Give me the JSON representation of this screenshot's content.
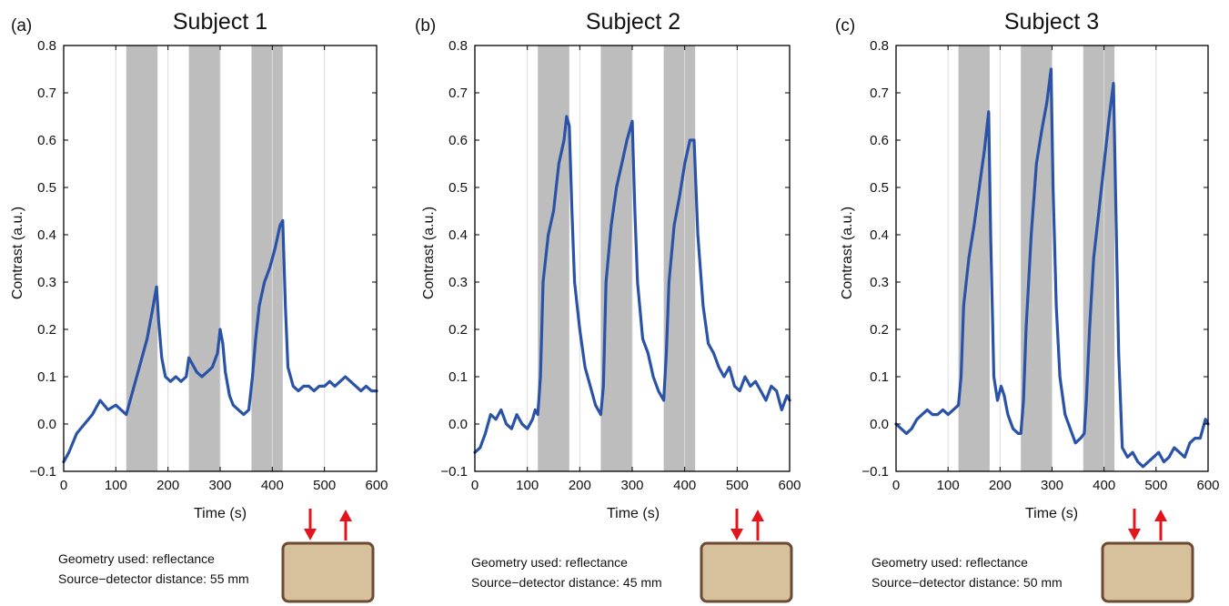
{
  "colors": {
    "line": "#2a52a6",
    "band": "#bdbdbd",
    "box_fill": "#d6c19c",
    "box_stroke": "#6e4a33",
    "arrow": "#e3141b",
    "grid": "#dcdcdc"
  },
  "chart_data": [
    {
      "type": "line",
      "panel_label": "(a)",
      "title": "Subject 1",
      "xlabel": "Time (s)",
      "ylabel": "Contrast (a.u.)",
      "xlim": [
        0,
        600
      ],
      "ylim": [
        -0.1,
        0.8
      ],
      "xticks": [
        "0",
        "100",
        "200",
        "300",
        "400",
        "500",
        "600"
      ],
      "yticks": [
        "−0.1",
        "0.0",
        "0.1",
        "0.2",
        "0.3",
        "0.4",
        "0.5",
        "0.6",
        "0.7",
        "0.8"
      ],
      "shaded_intervals": [
        [
          120,
          180
        ],
        [
          240,
          300
        ],
        [
          360,
          420
        ]
      ],
      "grid": "vertical",
      "series": [
        {
          "x": [
            0,
            10,
            25,
            40,
            55,
            70,
            85,
            100,
            110,
            120,
            130,
            140,
            150,
            160,
            170,
            178,
            182,
            188,
            195,
            205,
            215,
            225,
            235,
            240,
            245,
            255,
            265,
            275,
            285,
            295,
            300,
            305,
            310,
            318,
            325,
            335,
            345,
            355,
            362,
            368,
            375,
            385,
            395,
            405,
            415,
            420,
            425,
            430,
            440,
            450,
            460,
            470,
            480,
            490,
            500,
            510,
            520,
            530,
            540,
            550,
            560,
            570,
            580,
            590,
            600
          ],
          "y": [
            -0.08,
            -0.06,
            -0.02,
            0.0,
            0.02,
            0.05,
            0.03,
            0.04,
            0.03,
            0.02,
            0.06,
            0.1,
            0.14,
            0.18,
            0.24,
            0.29,
            0.22,
            0.14,
            0.1,
            0.09,
            0.1,
            0.09,
            0.1,
            0.14,
            0.13,
            0.11,
            0.1,
            0.11,
            0.12,
            0.15,
            0.2,
            0.17,
            0.11,
            0.06,
            0.04,
            0.03,
            0.02,
            0.03,
            0.1,
            0.18,
            0.25,
            0.3,
            0.33,
            0.37,
            0.42,
            0.43,
            0.25,
            0.12,
            0.08,
            0.07,
            0.08,
            0.08,
            0.07,
            0.08,
            0.08,
            0.09,
            0.08,
            0.09,
            0.1,
            0.09,
            0.08,
            0.07,
            0.08,
            0.07,
            0.07
          ]
        }
      ],
      "note": [
        "Geometry used: reflectance",
        "Source−detector distance: 55 mm"
      ]
    },
    {
      "type": "line",
      "panel_label": "(b)",
      "title": "Subject 2",
      "xlabel": "Time (s)",
      "ylabel": "Contrast (a.u.)",
      "xlim": [
        0,
        600
      ],
      "ylim": [
        -0.1,
        0.8
      ],
      "xticks": [
        "0",
        "100",
        "200",
        "300",
        "400",
        "500",
        "600"
      ],
      "yticks": [
        "−0.1",
        "0.0",
        "0.1",
        "0.2",
        "0.3",
        "0.4",
        "0.5",
        "0.6",
        "0.7",
        "0.8"
      ],
      "shaded_intervals": [
        [
          120,
          180
        ],
        [
          240,
          300
        ],
        [
          360,
          420
        ]
      ],
      "grid": "vertical",
      "series": [
        {
          "x": [
            0,
            10,
            20,
            30,
            40,
            50,
            60,
            70,
            80,
            90,
            100,
            110,
            115,
            120,
            125,
            130,
            140,
            150,
            160,
            170,
            175,
            180,
            185,
            190,
            200,
            210,
            220,
            230,
            240,
            245,
            250,
            260,
            270,
            280,
            290,
            300,
            305,
            310,
            320,
            330,
            340,
            350,
            360,
            365,
            370,
            380,
            390,
            400,
            410,
            418,
            425,
            435,
            445,
            455,
            465,
            475,
            485,
            495,
            505,
            515,
            525,
            535,
            545,
            555,
            565,
            575,
            585,
            595,
            600
          ],
          "y": [
            -0.06,
            -0.05,
            -0.02,
            0.02,
            0.01,
            0.03,
            0.0,
            -0.01,
            0.02,
            0.0,
            -0.01,
            0.01,
            0.03,
            0.02,
            0.1,
            0.3,
            0.4,
            0.45,
            0.55,
            0.6,
            0.65,
            0.63,
            0.45,
            0.3,
            0.2,
            0.12,
            0.08,
            0.04,
            0.02,
            0.08,
            0.3,
            0.42,
            0.5,
            0.55,
            0.6,
            0.64,
            0.45,
            0.3,
            0.18,
            0.15,
            0.1,
            0.07,
            0.05,
            0.15,
            0.3,
            0.42,
            0.48,
            0.55,
            0.6,
            0.6,
            0.4,
            0.25,
            0.17,
            0.15,
            0.12,
            0.1,
            0.12,
            0.08,
            0.07,
            0.1,
            0.08,
            0.09,
            0.07,
            0.05,
            0.08,
            0.07,
            0.03,
            0.06,
            0.05
          ]
        }
      ],
      "note": [
        "Geometry used: reflectance",
        "Source−detector distance: 45 mm"
      ]
    },
    {
      "type": "line",
      "panel_label": "(c)",
      "title": "Subject 3",
      "xlabel": "Time (s)",
      "ylabel": "Contrast (a.u.)",
      "xlim": [
        0,
        600
      ],
      "ylim": [
        -0.1,
        0.8
      ],
      "xticks": [
        "0",
        "100",
        "200",
        "300",
        "400",
        "500",
        "600"
      ],
      "yticks": [
        "−0.1",
        "0.0",
        "0.1",
        "0.2",
        "0.3",
        "0.4",
        "0.5",
        "0.6",
        "0.7",
        "0.8"
      ],
      "shaded_intervals": [
        [
          120,
          180
        ],
        [
          240,
          300
        ],
        [
          360,
          420
        ]
      ],
      "grid": "vertical",
      "series": [
        {
          "x": [
            0,
            10,
            20,
            30,
            40,
            50,
            60,
            70,
            80,
            90,
            100,
            110,
            120,
            125,
            130,
            140,
            150,
            160,
            170,
            178,
            182,
            188,
            195,
            202,
            208,
            215,
            225,
            235,
            240,
            245,
            250,
            260,
            270,
            280,
            290,
            298,
            302,
            308,
            315,
            325,
            335,
            345,
            355,
            362,
            366,
            372,
            380,
            390,
            400,
            410,
            418,
            422,
            428,
            435,
            445,
            455,
            465,
            475,
            485,
            495,
            505,
            515,
            525,
            535,
            545,
            555,
            565,
            575,
            585,
            595,
            600
          ],
          "y": [
            0.0,
            -0.01,
            -0.02,
            -0.01,
            0.01,
            0.02,
            0.03,
            0.02,
            0.02,
            0.03,
            0.02,
            0.03,
            0.04,
            0.1,
            0.25,
            0.35,
            0.42,
            0.5,
            0.58,
            0.66,
            0.4,
            0.1,
            0.05,
            0.08,
            0.06,
            0.02,
            -0.01,
            -0.02,
            -0.02,
            0.05,
            0.2,
            0.4,
            0.55,
            0.62,
            0.68,
            0.75,
            0.5,
            0.25,
            0.1,
            0.02,
            -0.01,
            -0.04,
            -0.03,
            -0.02,
            0.05,
            0.2,
            0.35,
            0.45,
            0.55,
            0.65,
            0.72,
            0.5,
            0.15,
            -0.05,
            -0.07,
            -0.06,
            -0.08,
            -0.09,
            -0.08,
            -0.07,
            -0.06,
            -0.08,
            -0.07,
            -0.05,
            -0.06,
            -0.07,
            -0.04,
            -0.03,
            -0.03,
            0.01,
            0.0
          ]
        }
      ],
      "note": [
        "Geometry used: reflectance",
        "Source−detector distance: 50 mm"
      ]
    }
  ]
}
